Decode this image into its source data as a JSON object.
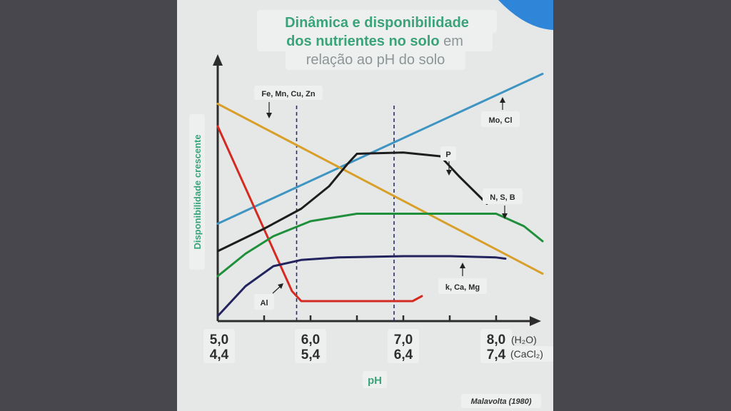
{
  "title": {
    "line1": "Dinâmica e disponibilidade",
    "line2_bold": "dos nutrientes no solo",
    "line2_rest": " em",
    "line3": "relação ao pH do solo"
  },
  "source": "Malavolta (1980)",
  "colors": {
    "title_green": "#3aa37a",
    "red": "#d42a22",
    "blue": "#3f95c2",
    "orange": "#d8a02a",
    "black": "#1d1d1d",
    "green": "#1f8f3b",
    "navy": "#23245e"
  },
  "chart_data": {
    "type": "line",
    "xlabel": "pH",
    "ylabel": "Disponibilidade crescente",
    "xlim": [
      5.0,
      8.5
    ],
    "ylim": [
      0,
      100
    ],
    "grid": false,
    "x_ticks": [
      {
        "x": 5.0,
        "h2o": "5,0",
        "cacl2": "4,4"
      },
      {
        "x": 6.0,
        "h2o": "6,0",
        "cacl2": "5,4"
      },
      {
        "x": 7.0,
        "h2o": "7,0",
        "cacl2": "6,4"
      },
      {
        "x": 8.0,
        "h2o": "8,0",
        "cacl2": "7,4"
      }
    ],
    "minor_ticks": [
      5.5,
      6.5,
      7.5
    ],
    "unit_h2o": "(H₂O)",
    "unit_cacl2": "(CaCl₂)",
    "reference_lines": [
      5.85,
      6.9
    ],
    "series": [
      {
        "name": "Mo, Cl",
        "color": "blue",
        "points": [
          [
            5.0,
            39
          ],
          [
            8.5,
            99
          ]
        ]
      },
      {
        "name": "Fe, Mn, Cu, Zn",
        "color": "orange",
        "points": [
          [
            5.0,
            87
          ],
          [
            8.5,
            19
          ]
        ]
      },
      {
        "name": "Al",
        "color": "red",
        "points": [
          [
            5.0,
            78
          ],
          [
            5.8,
            12
          ],
          [
            5.9,
            8
          ],
          [
            6.2,
            8
          ],
          [
            6.9,
            8
          ],
          [
            7.1,
            8
          ],
          [
            7.2,
            10
          ]
        ]
      },
      {
        "name": "P",
        "color": "black",
        "points": [
          [
            5.0,
            28
          ],
          [
            5.5,
            37
          ],
          [
            5.9,
            45
          ],
          [
            6.2,
            54
          ],
          [
            6.4,
            63
          ],
          [
            6.5,
            67
          ],
          [
            7.0,
            67.5
          ],
          [
            7.4,
            66
          ],
          [
            7.6,
            58
          ],
          [
            7.9,
            47
          ]
        ]
      },
      {
        "name": "N, S, B",
        "color": "green",
        "points": [
          [
            5.0,
            18
          ],
          [
            5.3,
            27
          ],
          [
            5.6,
            34
          ],
          [
            6.0,
            40
          ],
          [
            6.5,
            43
          ],
          [
            7.5,
            43
          ],
          [
            8.0,
            43
          ],
          [
            8.3,
            38
          ],
          [
            8.5,
            32
          ]
        ]
      },
      {
        "name": "k, Ca, Mg",
        "color": "navy",
        "points": [
          [
            5.0,
            2
          ],
          [
            5.3,
            14
          ],
          [
            5.6,
            22
          ],
          [
            5.9,
            24.5
          ],
          [
            6.3,
            25.5
          ],
          [
            7.0,
            26
          ],
          [
            7.5,
            26
          ],
          [
            8.0,
            25.5
          ],
          [
            8.1,
            25
          ]
        ]
      }
    ]
  }
}
